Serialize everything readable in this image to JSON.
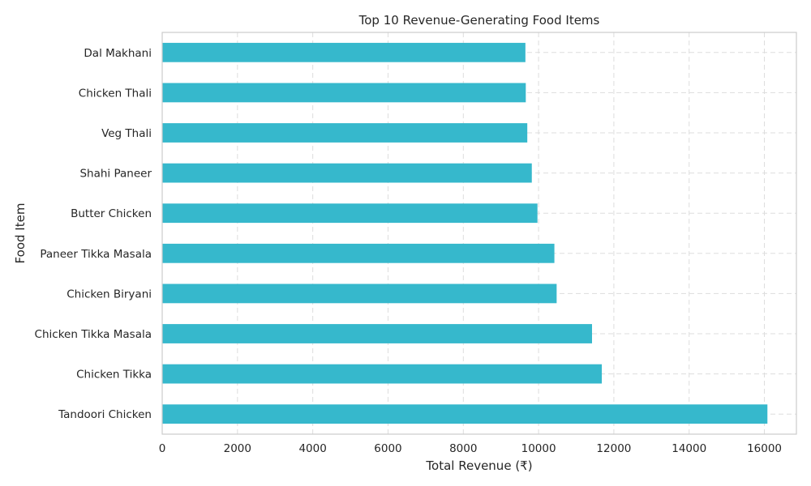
{
  "chart_data": {
    "type": "bar",
    "orientation": "horizontal",
    "title": "Top 10 Revenue-Generating Food Items",
    "xlabel": "Total Revenue (₹)",
    "ylabel": "Food Item",
    "categories": [
      "Dal Makhani",
      "Chicken Thali",
      "Veg Thali",
      "Shahi Paneer",
      "Butter Chicken",
      "Paneer Tikka Masala",
      "Chicken Biryani",
      "Chicken Tikka Masala",
      "Chicken Tikka",
      "Tandoori Chicken"
    ],
    "values": [
      9650,
      9660,
      9700,
      9820,
      9970,
      10420,
      10480,
      11420,
      11680,
      16080
    ],
    "xlim": [
      0,
      16850
    ],
    "xticks": [
      0,
      2000,
      4000,
      6000,
      8000,
      10000,
      12000,
      14000,
      16000
    ],
    "grid": true,
    "bar_color": "#36b8cc"
  }
}
